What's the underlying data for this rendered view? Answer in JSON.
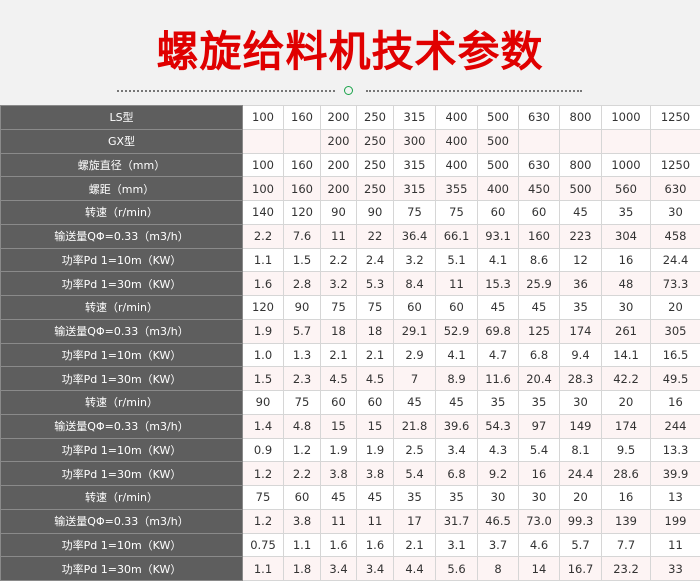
{
  "title": "螺旋给料机技术参数",
  "colors": {
    "title": "#e00000",
    "header_bg": "#5e5e5e",
    "alt_row": "#fdf4f4",
    "divider_circle": "#1aa34a"
  },
  "rows": [
    {
      "label": "LS型",
      "values": [
        "100",
        "160",
        "200",
        "250",
        "315",
        "400",
        "500",
        "630",
        "800",
        "1000",
        "1250"
      ]
    },
    {
      "label": "GX型",
      "values": [
        "",
        "",
        "200",
        "250",
        "300",
        "400",
        "500",
        "",
        "",
        "",
        ""
      ]
    },
    {
      "label": "螺旋直径（mm）",
      "values": [
        "100",
        "160",
        "200",
        "250",
        "315",
        "400",
        "500",
        "630",
        "800",
        "1000",
        "1250"
      ]
    },
    {
      "label": "螺距（mm）",
      "values": [
        "100",
        "160",
        "200",
        "250",
        "315",
        "355",
        "400",
        "450",
        "500",
        "560",
        "630"
      ]
    },
    {
      "label": "转速（r/min）",
      "values": [
        "140",
        "120",
        "90",
        "90",
        "75",
        "75",
        "60",
        "60",
        "45",
        "35",
        "30"
      ]
    },
    {
      "label": "输送量QΦ=0.33（m3/h）",
      "values": [
        "2.2",
        "7.6",
        "11",
        "22",
        "36.4",
        "66.1",
        "93.1",
        "160",
        "223",
        "304",
        "458"
      ]
    },
    {
      "label": "功率Pd 1=10m（KW）",
      "values": [
        "1.1",
        "1.5",
        "2.2",
        "2.4",
        "3.2",
        "5.1",
        "4.1",
        "8.6",
        "12",
        "16",
        "24.4"
      ]
    },
    {
      "label": "功率Pd 1=30m（KW）",
      "values": [
        "1.6",
        "2.8",
        "3.2",
        "5.3",
        "8.4",
        "11",
        "15.3",
        "25.9",
        "36",
        "48",
        "73.3"
      ]
    },
    {
      "label": "转速（r/min）",
      "values": [
        "120",
        "90",
        "75",
        "75",
        "60",
        "60",
        "45",
        "45",
        "35",
        "30",
        "20"
      ]
    },
    {
      "label": "输送量QΦ=0.33（m3/h）",
      "values": [
        "1.9",
        "5.7",
        "18",
        "18",
        "29.1",
        "52.9",
        "69.8",
        "125",
        "174",
        "261",
        "305"
      ]
    },
    {
      "label": "功率Pd 1=10m（KW）",
      "values": [
        "1.0",
        "1.3",
        "2.1",
        "2.1",
        "2.9",
        "4.1",
        "4.7",
        "6.8",
        "9.4",
        "14.1",
        "16.5"
      ]
    },
    {
      "label": "功率Pd 1=30m（KW）",
      "values": [
        "1.5",
        "2.3",
        "4.5",
        "4.5",
        "7",
        "8.9",
        "11.6",
        "20.4",
        "28.3",
        "42.2",
        "49.5"
      ]
    },
    {
      "label": "转速（r/min）",
      "values": [
        "90",
        "75",
        "60",
        "60",
        "45",
        "45",
        "35",
        "35",
        "30",
        "20",
        "16"
      ]
    },
    {
      "label": "输送量QΦ=0.33（m3/h）",
      "values": [
        "1.4",
        "4.8",
        "15",
        "15",
        "21.8",
        "39.6",
        "54.3",
        "97",
        "149",
        "174",
        "244"
      ]
    },
    {
      "label": "功率Pd 1=10m（KW）",
      "values": [
        "0.9",
        "1.2",
        "1.9",
        "1.9",
        "2.5",
        "3.4",
        "4.3",
        "5.4",
        "8.1",
        "9.5",
        "13.3"
      ]
    },
    {
      "label": "功率Pd 1=30m（KW）",
      "values": [
        "1.2",
        "2.2",
        "3.8",
        "3.8",
        "5.4",
        "6.8",
        "9.2",
        "16",
        "24.4",
        "28.6",
        "39.9"
      ]
    },
    {
      "label": "转速（r/min）",
      "values": [
        "75",
        "60",
        "45",
        "45",
        "35",
        "35",
        "30",
        "30",
        "20",
        "16",
        "13"
      ]
    },
    {
      "label": "输送量QΦ=0.33（m3/h）",
      "values": [
        "1.2",
        "3.8",
        "11",
        "11",
        "17",
        "31.7",
        "46.5",
        "73.0",
        "99.3",
        "139",
        "199"
      ]
    },
    {
      "label": "功率Pd 1=10m（KW）",
      "values": [
        "0.75",
        "1.1",
        "1.6",
        "1.6",
        "2.1",
        "3.1",
        "3.7",
        "4.6",
        "5.7",
        "7.7",
        "11"
      ]
    },
    {
      "label": "功率Pd 1=30m（KW）",
      "values": [
        "1.1",
        "1.8",
        "3.4",
        "3.4",
        "4.4",
        "5.6",
        "8",
        "14",
        "16.7",
        "23.2",
        "33"
      ]
    }
  ]
}
